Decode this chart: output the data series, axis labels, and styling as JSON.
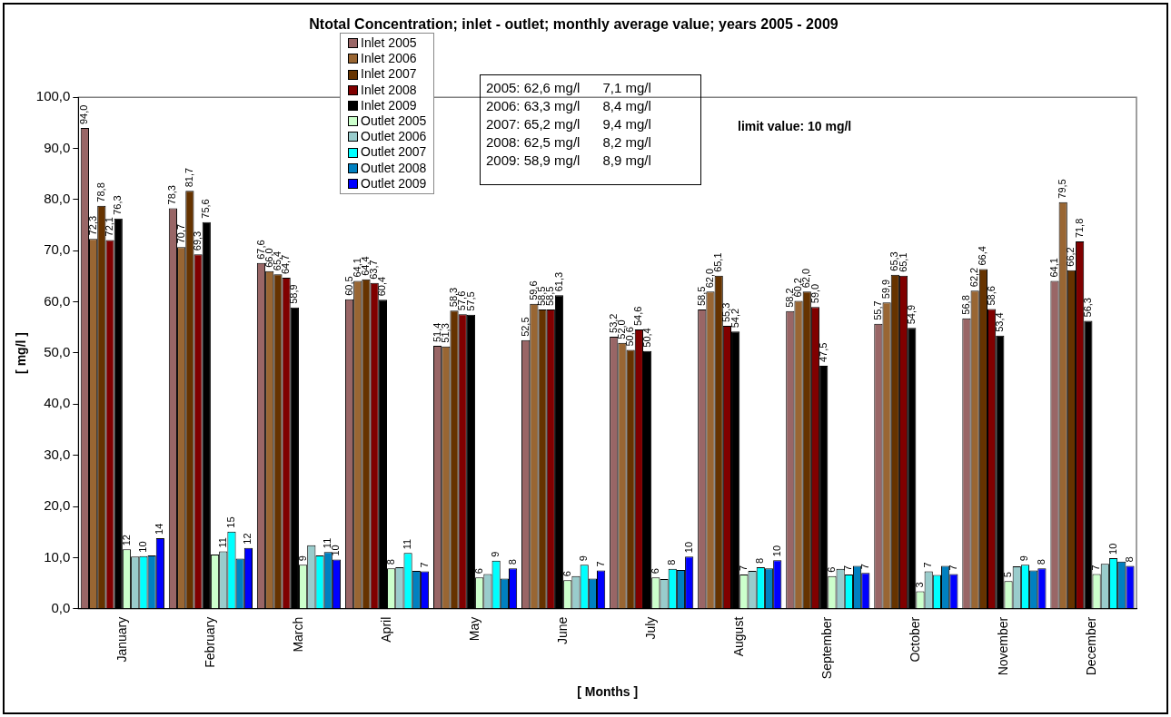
{
  "chart_data": {
    "type": "bar",
    "title": "Ntotal Concentration; inlet - outlet; monthly average value; years 2005 - 2009",
    "xlabel": "[ Months ]",
    "ylabel": "[ mg/l ]",
    "categories": [
      "January",
      "February",
      "March",
      "April",
      "May",
      "June",
      "July",
      "August",
      "September",
      "October",
      "November",
      "December"
    ],
    "ylim": [
      0,
      100
    ],
    "yticks": [
      {
        "value": 0,
        "label": "0,0"
      },
      {
        "value": 10,
        "label": "10,0"
      },
      {
        "value": 20,
        "label": "20,0"
      },
      {
        "value": 30,
        "label": "30,0"
      },
      {
        "value": 40,
        "label": "40,0"
      },
      {
        "value": 50,
        "label": "50,0"
      },
      {
        "value": 60,
        "label": "60,0"
      },
      {
        "value": 70,
        "label": "70,0"
      },
      {
        "value": 80,
        "label": "80,0"
      },
      {
        "value": 90,
        "label": "90,0"
      },
      {
        "value": 100,
        "label": "100,0"
      }
    ],
    "grid": false,
    "legend": "top",
    "series": [
      {
        "name": "Inlet 2005",
        "color": "#996666",
        "values": [
          94.0,
          78.3,
          67.6,
          60.5,
          51.4,
          52.5,
          53.2,
          58.5,
          58.2,
          55.7,
          56.8,
          64.1
        ],
        "value_labels": [
          "94,0",
          "78,3",
          "67,6",
          "60,5",
          "51,4",
          "52,5",
          "53,2",
          "58,5",
          "58,2",
          "55,7",
          "56,8",
          "64,1"
        ]
      },
      {
        "name": "Inlet 2006",
        "color": "#996633",
        "values": [
          72.3,
          70.7,
          66.0,
          64.1,
          51.3,
          59.6,
          52.0,
          62.0,
          60.2,
          59.9,
          62.2,
          79.5
        ],
        "value_labels": [
          "72,3",
          "70,7",
          "66,0",
          "64,1",
          "51,3",
          "59,6",
          "52,0",
          "62,0",
          "60,2",
          "59,9",
          "62,2",
          "79,5"
        ]
      },
      {
        "name": "Inlet 2007",
        "color": "#663300",
        "values": [
          78.8,
          81.7,
          65.4,
          64.4,
          58.3,
          58.5,
          50.6,
          65.1,
          62.0,
          65.3,
          66.4,
          66.2
        ],
        "value_labels": [
          "78,8",
          "81,7",
          "65,4",
          "64,4",
          "58,3",
          "58,5",
          "50,6",
          "65,1",
          "62,0",
          "65,3",
          "66,4",
          "66,2"
        ]
      },
      {
        "name": "Inlet 2008",
        "color": "#800000",
        "values": [
          72.1,
          69.3,
          64.7,
          63.7,
          57.6,
          58.5,
          54.6,
          55.3,
          59.0,
          65.1,
          58.6,
          71.8
        ],
        "value_labels": [
          "72,1",
          "69,3",
          "64,7",
          "63,7",
          "57,6",
          "58,5",
          "54,6",
          "55,3",
          "59,0",
          "65,1",
          "58,6",
          "71,8"
        ]
      },
      {
        "name": "Inlet 2009",
        "color": "#000000",
        "values": [
          76.3,
          75.6,
          58.9,
          60.4,
          57.5,
          61.3,
          50.4,
          54.2,
          47.5,
          54.9,
          53.4,
          56.3
        ],
        "value_labels": [
          "76,3",
          "75,6",
          "58,9",
          "60,4",
          "57,5",
          "61,3",
          "50,4",
          "54,2",
          "47,5",
          "54,9",
          "53,4",
          "56,3"
        ]
      },
      {
        "name": "Outlet 2005",
        "color": "#ccffcc",
        "values": [
          11.6,
          10.6,
          8.6,
          7.9,
          6.1,
          5.6,
          6.1,
          6.7,
          6.4,
          3.4,
          5.4,
          6.8
        ],
        "value_labels": [
          "12",
          null,
          "9",
          "8",
          "6",
          "6",
          "6",
          "7",
          "6",
          "3",
          "5",
          "7"
        ]
      },
      {
        "name": "Outlet 2006",
        "color": "#99cccc",
        "values": [
          10.2,
          11.2,
          12.4,
          8.1,
          6.8,
          6.4,
          5.8,
          7.4,
          7.8,
          7.3,
          8.3,
          8.8
        ],
        "value_labels": [
          null,
          "11",
          null,
          null,
          null,
          null,
          null,
          null,
          null,
          "7",
          null,
          null
        ]
      },
      {
        "name": "Outlet 2007",
        "color": "#00ffff",
        "values": [
          10.3,
          15.1,
          10.4,
          10.9,
          9.4,
          8.6,
          7.8,
          8.1,
          6.7,
          6.6,
          8.6,
          9.9
        ],
        "value_labels": [
          "10",
          "15",
          null,
          "11",
          "9",
          "9",
          "8",
          "8",
          "7",
          null,
          "9",
          "10"
        ]
      },
      {
        "name": "Outlet 2008",
        "color": "#0080c0",
        "values": [
          10.4,
          9.8,
          11.1,
          7.4,
          5.9,
          5.9,
          7.6,
          7.9,
          8.4,
          8.4,
          7.5,
          9.2
        ],
        "value_labels": [
          null,
          null,
          "11",
          null,
          null,
          null,
          null,
          null,
          null,
          null,
          null,
          null
        ]
      },
      {
        "name": "Outlet 2009",
        "color": "#0000ff",
        "values": [
          13.8,
          11.9,
          9.6,
          7.3,
          7.9,
          7.5,
          10.2,
          9.5,
          7.0,
          6.8,
          7.9,
          8.4
        ],
        "value_labels": [
          "14",
          "12",
          "10",
          "7",
          "8",
          "7",
          "10",
          "10",
          "7",
          "7",
          "8",
          "8"
        ]
      }
    ],
    "annotations": [
      "2005: 62,6 mg/l      7,1 mg/l",
      "2006: 63,3 mg/l      8,4 mg/l",
      "2007: 65,2 mg/l      9,4 mg/l",
      "2008: 62,5 mg/l      8,2 mg/l",
      "2009: 58,9 mg/l      8,9 mg/l",
      "limit value: 10 mg/l"
    ]
  }
}
